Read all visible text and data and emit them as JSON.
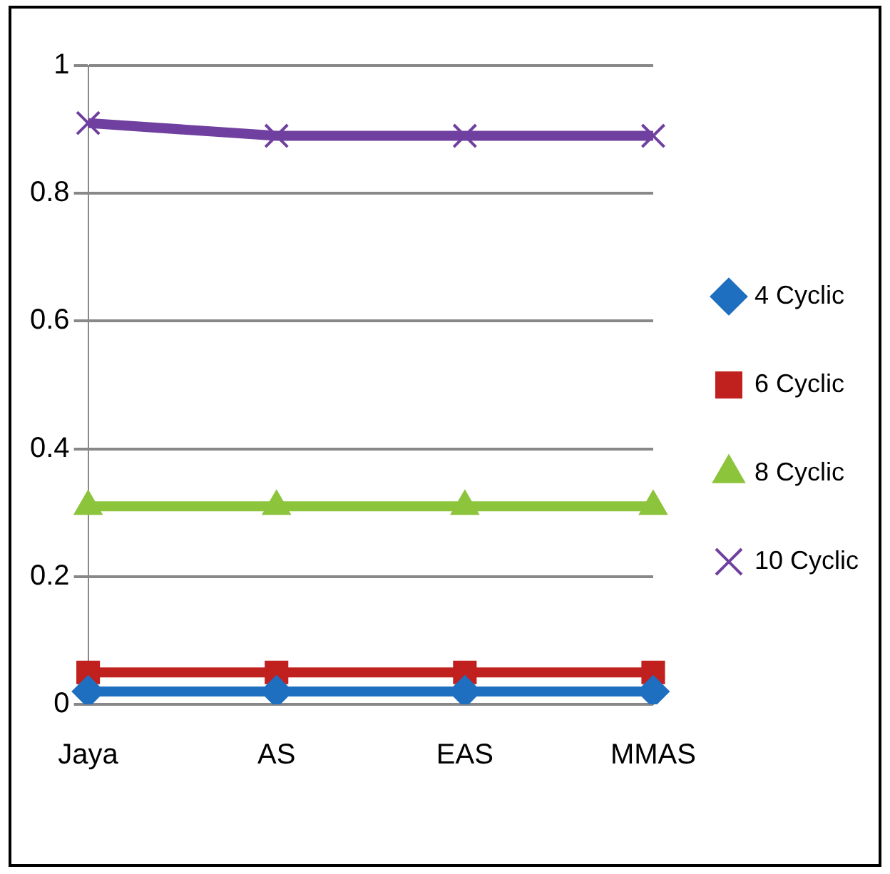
{
  "chart_data": {
    "type": "line",
    "categories": [
      "Jaya",
      "AS",
      "EAS",
      "MMAS"
    ],
    "series": [
      {
        "name": "4 Cyclic",
        "color": "#1f6fc0",
        "marker": "diamond",
        "values": [
          0.02,
          0.02,
          0.02,
          0.02
        ]
      },
      {
        "name": "6 Cyclic",
        "color": "#c0201e",
        "marker": "square",
        "values": [
          0.05,
          0.05,
          0.05,
          0.05
        ]
      },
      {
        "name": "8 Cyclic",
        "color": "#8cc43c",
        "marker": "triangle",
        "values": [
          0.31,
          0.31,
          0.31,
          0.31
        ]
      },
      {
        "name": "10 Cyclic",
        "color": "#7040a0",
        "marker": "cross",
        "values": [
          0.91,
          0.89,
          0.89,
          0.89
        ]
      }
    ],
    "ylim": [
      0,
      1
    ],
    "yticks": [
      0,
      0.2,
      0.4,
      0.6,
      0.8,
      1
    ],
    "grid": "y",
    "legend": "right",
    "line_style": "solid"
  }
}
